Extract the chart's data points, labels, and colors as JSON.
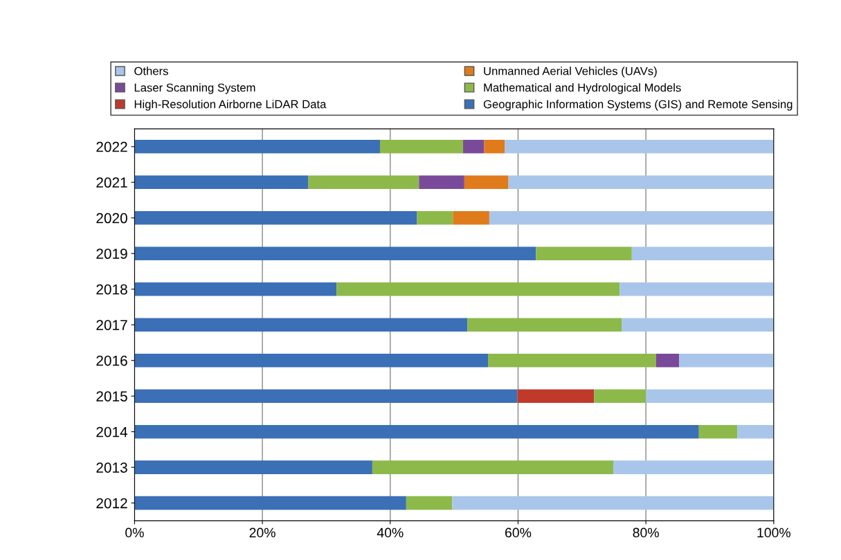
{
  "chart_data": {
    "type": "bar",
    "orientation": "horizontal",
    "stacked": true,
    "categories": [
      "2022",
      "2021",
      "2020",
      "2019",
      "2018",
      "2017",
      "2016",
      "2015",
      "2014",
      "2013",
      "2012"
    ],
    "series": [
      {
        "name": "Geographic Information Systems (GIS) and Remote Sensing",
        "color": "#3b6fb6",
        "values": [
          38.4,
          27.2,
          44.2,
          62.8,
          31.6,
          52.1,
          55.3,
          59.9,
          88.3,
          37.2,
          42.5
        ]
      },
      {
        "name": "High-Resolution Airborne LiDAR Data",
        "color": "#c0392b",
        "values": [
          0,
          0,
          0,
          0,
          0,
          0,
          0,
          12,
          0,
          0,
          0
        ]
      },
      {
        "name": "Mathematical and Hydrological Models",
        "color": "#8db94a",
        "values": [
          13,
          17.3,
          5.6,
          15,
          44.3,
          24.1,
          26.3,
          8.1,
          6,
          37.7,
          7.2
        ]
      },
      {
        "name": "Laser Scanning System",
        "color": "#7a4a9a",
        "values": [
          3.3,
          7.1,
          0,
          0,
          0,
          0,
          3.6,
          0,
          0,
          0,
          0
        ]
      },
      {
        "name": "Unmanned Aerial Vehicles (UAVs)",
        "color": "#e07b1c",
        "values": [
          3.2,
          6.9,
          5.7,
          0,
          0,
          0,
          0,
          0,
          0,
          0,
          0
        ]
      },
      {
        "name": "Others",
        "color": "#a9c6ea",
        "values": [
          42.1,
          41.5,
          44.5,
          22.2,
          24.1,
          23.8,
          14.8,
          20,
          5.7,
          25.1,
          50.3
        ]
      }
    ],
    "xlim": [
      0,
      100
    ],
    "xticks": [
      {
        "value": 0,
        "label": "0%"
      },
      {
        "value": 20,
        "label": "20%"
      },
      {
        "value": 40,
        "label": "40%"
      },
      {
        "value": 60,
        "label": "60%"
      },
      {
        "value": 80,
        "label": "80%"
      },
      {
        "value": 100,
        "label": "100%"
      }
    ],
    "grid": "x",
    "legend": "top"
  }
}
